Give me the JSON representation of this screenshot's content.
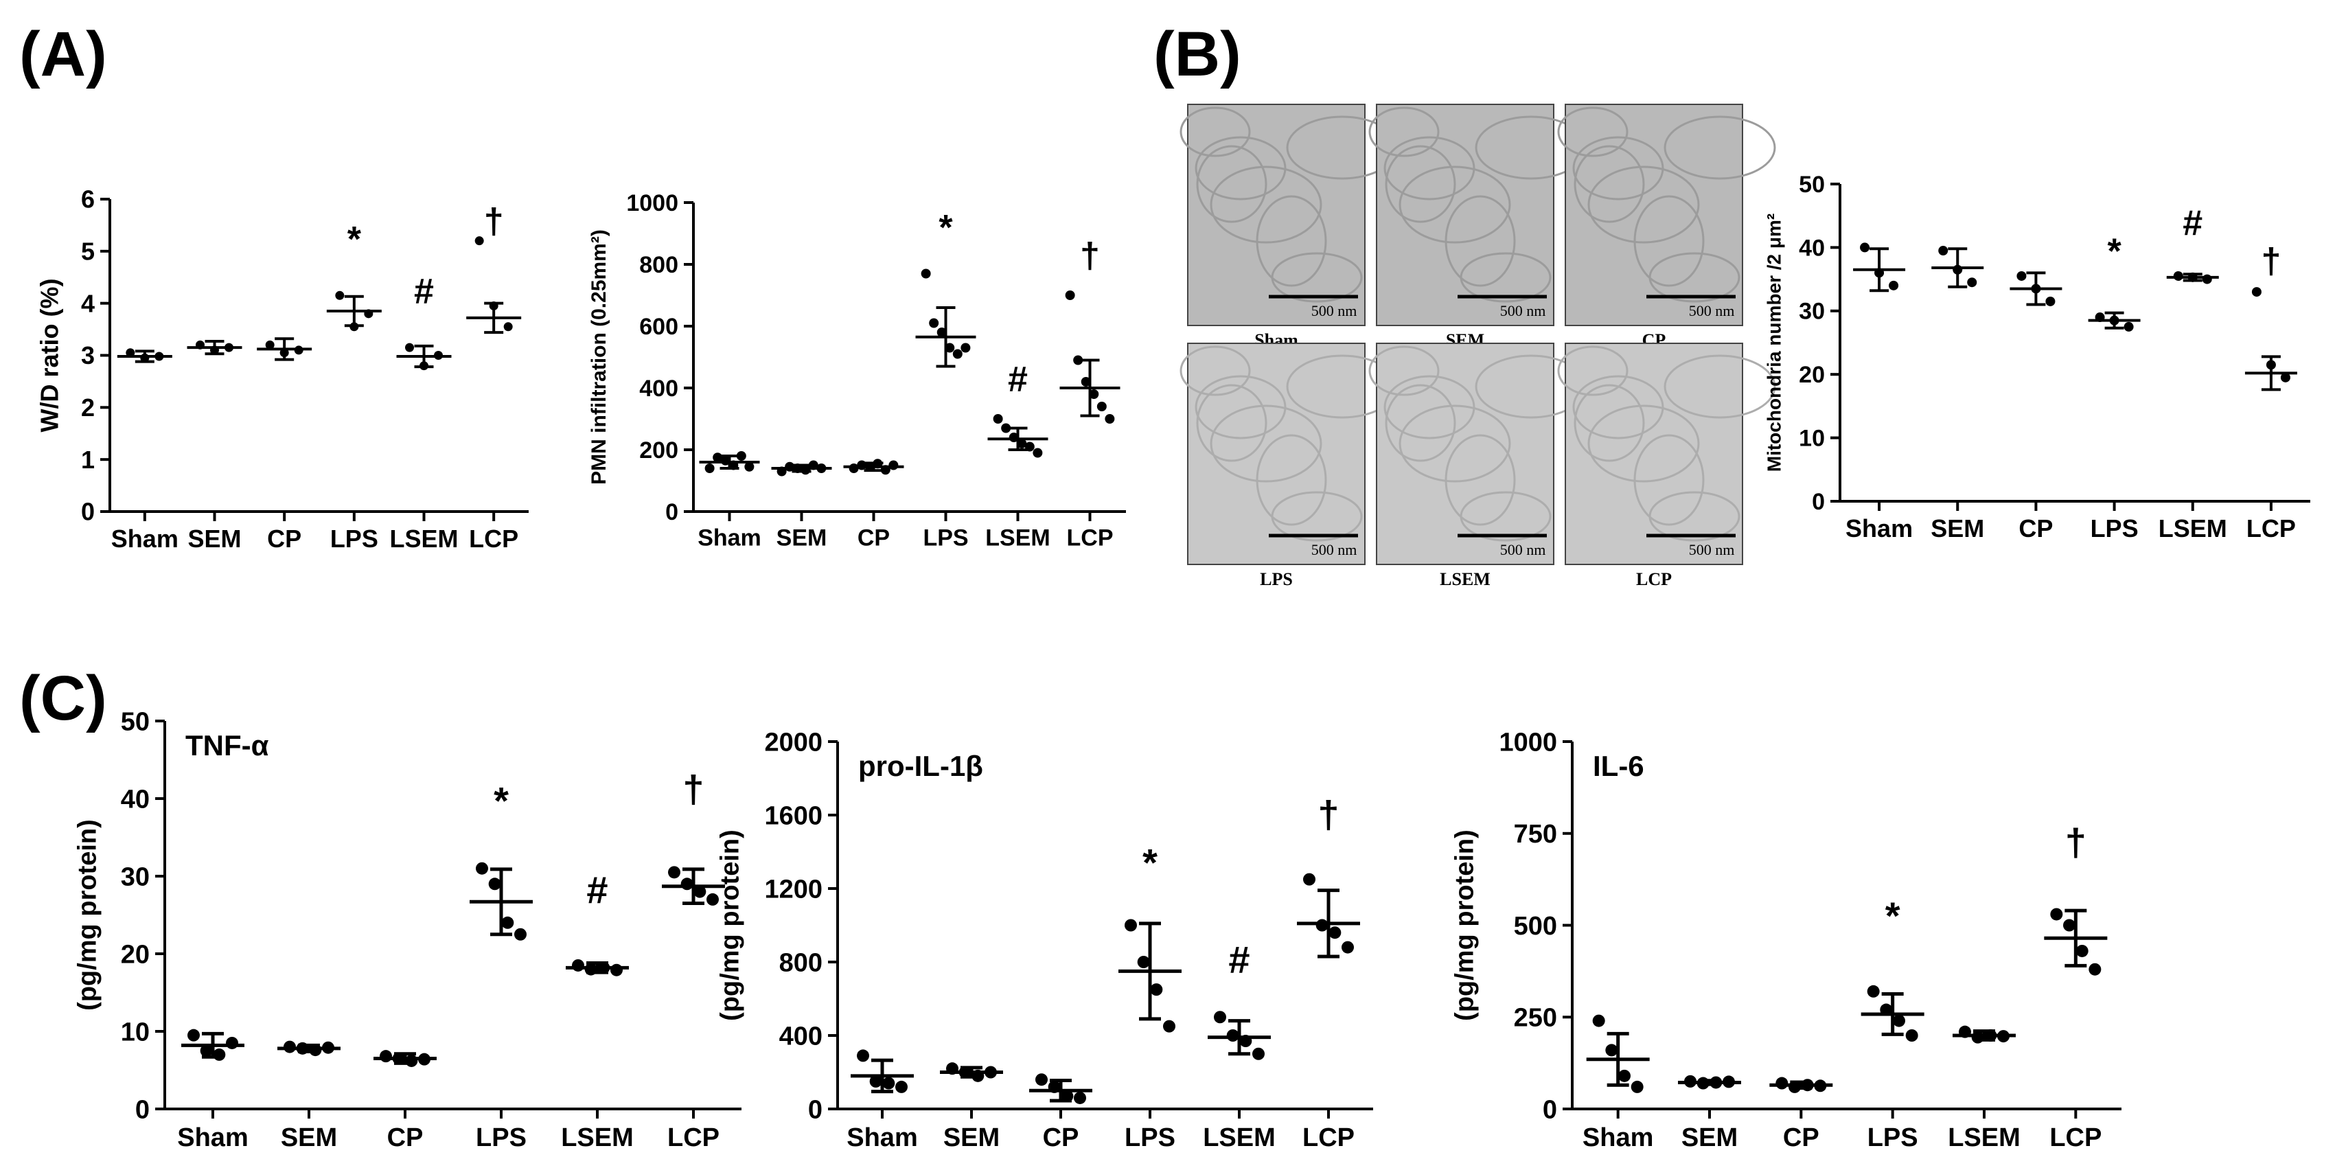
{
  "panel_labels": [
    "(A)",
    "(B)",
    "(C)"
  ],
  "em_images": {
    "captions": [
      "Sham",
      "SEM",
      "CP",
      "LPS",
      "LSEM",
      "LCP"
    ],
    "scale_bar_label": "500 nm"
  },
  "chart_data": [
    {
      "type": "scatter",
      "id": "wd",
      "title": "",
      "xlabel": "",
      "ylabel": "W/D ratio (%)",
      "categories": [
        "Sham",
        "SEM",
        "CP",
        "LPS",
        "LSEM",
        "LCP"
      ],
      "ylim": [
        0,
        6
      ],
      "yticks": [
        0,
        1,
        2,
        3,
        4,
        5,
        6
      ],
      "ytick_labels": [
        "0",
        "1",
        "2",
        "3",
        "4",
        "5",
        "6"
      ],
      "mean": [
        2.98,
        3.15,
        3.12,
        3.85,
        2.98,
        3.72
      ],
      "sd": [
        0.1,
        0.12,
        0.2,
        0.28,
        0.2,
        0.28
      ],
      "points": [
        [
          3.05,
          2.95,
          2.98
        ],
        [
          3.2,
          3.1,
          3.15
        ],
        [
          3.2,
          3.05,
          3.1
        ],
        [
          4.15,
          3.55,
          3.8
        ],
        [
          3.15,
          2.8,
          3.0
        ],
        [
          5.2,
          3.95,
          3.55
        ]
      ],
      "markers": [
        "",
        "",
        "",
        "*",
        "#",
        "†"
      ],
      "marker_y": [
        null,
        null,
        null,
        5.0,
        4.0,
        5.35
      ]
    },
    {
      "type": "scatter",
      "id": "pmn",
      "title": "",
      "xlabel": "",
      "ylabel": "PMN infiltration (0.25mm²)",
      "categories": [
        "Sham",
        "SEM",
        "CP",
        "LPS",
        "LSEM",
        "LCP"
      ],
      "ylim": [
        0,
        1000
      ],
      "yticks": [
        0,
        200,
        400,
        600,
        800,
        1000
      ],
      "ytick_labels": [
        "0",
        "200",
        "400",
        "600",
        "800",
        "1000"
      ],
      "mean": [
        160,
        140,
        145,
        565,
        235,
        400
      ],
      "sd": [
        20,
        10,
        12,
        95,
        35,
        90
      ],
      "points": [
        [
          140,
          175,
          165,
          150,
          180,
          145
        ],
        [
          130,
          145,
          140,
          135,
          150,
          140
        ],
        [
          140,
          150,
          145,
          155,
          135,
          150
        ],
        [
          770,
          610,
          580,
          530,
          510,
          530
        ],
        [
          300,
          270,
          240,
          220,
          210,
          190
        ],
        [
          700,
          490,
          420,
          380,
          340,
          300
        ]
      ],
      "markers": [
        "",
        "",
        "",
        "*",
        "#",
        "†"
      ],
      "marker_y": [
        null,
        null,
        null,
        880,
        390,
        790
      ]
    },
    {
      "type": "scatter",
      "id": "mito",
      "title": "",
      "xlabel": "",
      "ylabel": "Mitochondria number /2 μm²",
      "categories": [
        "Sham",
        "SEM",
        "CP",
        "LPS",
        "LSEM",
        "LCP"
      ],
      "ylim": [
        0,
        50
      ],
      "yticks": [
        0,
        10,
        20,
        30,
        40,
        50
      ],
      "ytick_labels": [
        "0",
        "10",
        "20",
        "30",
        "40",
        "50"
      ],
      "mean": [
        36.5,
        36.8,
        33.5,
        28.5,
        35.3,
        20.2
      ],
      "sd": [
        3.3,
        3.0,
        2.5,
        1.2,
        0.5,
        2.6
      ],
      "points": [
        [
          40,
          36,
          34
        ],
        [
          39.5,
          36.5,
          34.5
        ],
        [
          35.5,
          33.5,
          31.5
        ],
        [
          29,
          28.5,
          27.5
        ],
        [
          35.5,
          35.3,
          35.0
        ],
        [
          33,
          21.5,
          19.5
        ]
      ],
      "markers": [
        "",
        "",
        "",
        "*",
        "#",
        "†"
      ],
      "marker_y": [
        null,
        null,
        null,
        37.5,
        42.0,
        36.0
      ]
    },
    {
      "type": "scatter",
      "id": "tnf",
      "title": "",
      "annotation": "TNF-α",
      "xlabel": "",
      "ylabel": "(pg/mg protein)",
      "categories": [
        "Sham",
        "SEM",
        "CP",
        "LPS",
        "LSEM",
        "LCP"
      ],
      "ylim": [
        0,
        50
      ],
      "yticks": [
        0,
        10,
        20,
        30,
        40,
        50
      ],
      "ytick_labels": [
        "0",
        "10",
        "20",
        "30",
        "40",
        "50"
      ],
      "mean": [
        8.2,
        7.8,
        6.5,
        26.7,
        18.2,
        28.7
      ],
      "sd": [
        1.5,
        0.4,
        0.6,
        4.2,
        0.6,
        2.2
      ],
      "points": [
        [
          9.5,
          7.5,
          7.0,
          8.5
        ],
        [
          8.0,
          7.8,
          7.6,
          7.9
        ],
        [
          6.8,
          6.5,
          6.2,
          6.4
        ],
        [
          31,
          29,
          24,
          22.5
        ],
        [
          18.5,
          18.0,
          18.2,
          17.9
        ],
        [
          30.5,
          29.0,
          28.0,
          27.0
        ]
      ],
      "markers": [
        "",
        "",
        "",
        "*",
        "#",
        "†"
      ],
      "marker_y": [
        null,
        null,
        null,
        38.0,
        26.5,
        39.5
      ]
    },
    {
      "type": "scatter",
      "id": "il1b",
      "title": "",
      "annotation": "pro-IL-1β",
      "xlabel": "",
      "ylabel": "(pg/mg protein)",
      "categories": [
        "Sham",
        "SEM",
        "CP",
        "LPS",
        "LSEM",
        "LCP"
      ],
      "ylim": [
        0,
        2000
      ],
      "yticks": [
        0,
        400,
        800,
        1200,
        1600,
        2000
      ],
      "ytick_labels": [
        "0",
        "400",
        "800",
        "1200",
        "1600",
        "2000"
      ],
      "mean": [
        180,
        200,
        100,
        750,
        390,
        1010
      ],
      "sd": [
        85,
        25,
        55,
        260,
        90,
        180
      ],
      "points": [
        [
          290,
          150,
          140,
          120
        ],
        [
          220,
          200,
          180,
          200
        ],
        [
          160,
          120,
          70,
          60
        ],
        [
          1000,
          800,
          650,
          450
        ],
        [
          500,
          400,
          370,
          300
        ],
        [
          1250,
          1000,
          960,
          880
        ]
      ],
      "markers": [
        "",
        "",
        "",
        "*",
        "#",
        "†"
      ],
      "marker_y": [
        null,
        null,
        null,
        1270,
        740,
        1530
      ]
    },
    {
      "type": "scatter",
      "id": "il6",
      "title": "",
      "annotation": "IL-6",
      "xlabel": "",
      "ylabel": "(pg/mg protein)",
      "categories": [
        "Sham",
        "SEM",
        "CP",
        "LPS",
        "LSEM",
        "LCP"
      ],
      "ylim": [
        0,
        1000
      ],
      "yticks": [
        0,
        250,
        500,
        750,
        1000
      ],
      "ytick_labels": [
        "0",
        "250",
        "500",
        "750",
        "1000"
      ],
      "mean": [
        135,
        72,
        65,
        258,
        200,
        465
      ],
      "sd": [
        70,
        5,
        8,
        55,
        12,
        75
      ],
      "points": [
        [
          240,
          160,
          90,
          60
        ],
        [
          75,
          70,
          72,
          74
        ],
        [
          70,
          60,
          65,
          63
        ],
        [
          320,
          270,
          240,
          200
        ],
        [
          210,
          195,
          200,
          198
        ],
        [
          530,
          500,
          430,
          380
        ]
      ],
      "markers": [
        "",
        "",
        "",
        "*",
        "",
        "†"
      ],
      "marker_y": [
        null,
        null,
        null,
        490,
        null,
        690
      ]
    }
  ]
}
